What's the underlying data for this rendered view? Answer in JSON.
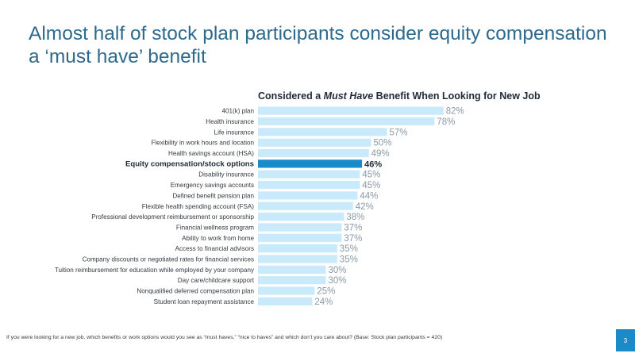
{
  "slide": {
    "title": "Almost half of stock plan participants consider equity compensation a ‘must have’ benefit",
    "footnote": "If you were looking for a new job, which benefits or work options would you see as “must haves,” “nice to haves” and which don’t you care about? (Base: Stock plan participants = 420)",
    "page_number": "3"
  },
  "chart_data": {
    "type": "bar",
    "orientation": "horizontal",
    "title_parts": [
      "Considered a ",
      "Must Have",
      " Benefit When Looking for New Job"
    ],
    "categories": [
      "401(k) plan",
      "Health insurance",
      "Life insurance",
      "Flexibility in work hours and location",
      "Health savings account (HSA)",
      "Equity compensation/stock options",
      "Disability insurance",
      "Emergency savings accounts",
      "Defined benefit pension plan",
      "Flexible health spending account (FSA)",
      "Professional development reimbursement or sponsorship",
      "Financial wellness program",
      "Ability to work from home",
      "Access to financial advisors",
      "Company discounts or negotiated rates for financial services",
      "Tuition reimbursement for education while employed by your company",
      "Day care/childcare support",
      "Nonqualified deferred compensation plan",
      "Student loan repayment assistance"
    ],
    "values": [
      82,
      78,
      57,
      50,
      49,
      46,
      45,
      45,
      44,
      42,
      38,
      37,
      37,
      35,
      35,
      30,
      30,
      25,
      24
    ],
    "value_labels": [
      "82%",
      "78%",
      "57%",
      "50%",
      "49%",
      "46%",
      "45%",
      "45%",
      "44%",
      "42%",
      "38%",
      "37%",
      "37%",
      "35%",
      "35%",
      "30%",
      "30%",
      "25%",
      "24%"
    ],
    "highlight_category": "Equity compensation/stock options",
    "xlim": [
      0,
      100
    ],
    "grid": false,
    "colors": {
      "bar": "#c9eafa",
      "bar_highlight": "#1a8ac8",
      "label": "#333a40",
      "label_highlight": "#1f2a36",
      "value": "#8a9aa6",
      "value_highlight": "#1f2a36"
    }
  }
}
